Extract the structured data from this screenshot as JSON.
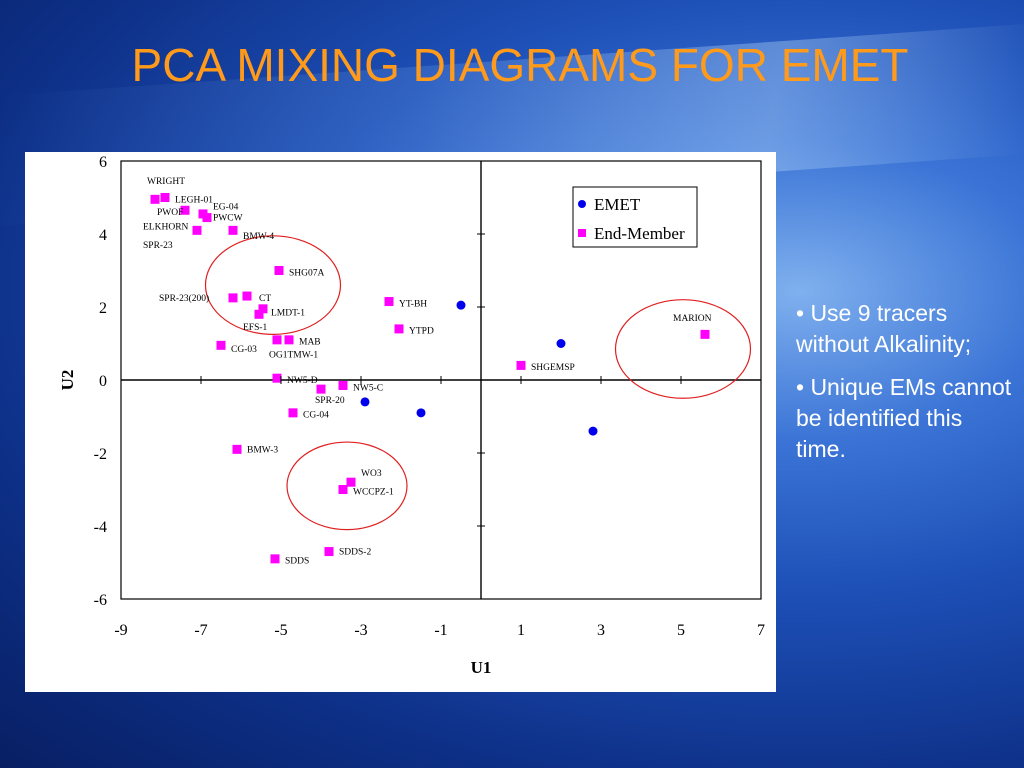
{
  "title": "PCA MIXING DIAGRAMS FOR EMET",
  "bullets": [
    "• Use 9 tracers without Alkalinity;",
    "• Unique EMs cannot be identified this time."
  ],
  "colors": {
    "title": "#ff9a1a",
    "emet": "#0000ee",
    "end_member": "#ff00ff",
    "circle": "#e02020"
  },
  "chart_data": {
    "type": "scatter",
    "title": "",
    "xlabel": "U1",
    "ylabel": "U2",
    "xlim": [
      -9,
      7
    ],
    "ylim": [
      -6,
      6
    ],
    "xticks": [
      "-9",
      "-7",
      "-5",
      "-3",
      "-1",
      "1",
      "3",
      "5",
      "7"
    ],
    "yticks": [
      "6",
      "4",
      "2",
      "0",
      "-2",
      "-4",
      "-6"
    ],
    "legend_position": "top-right",
    "series": [
      {
        "name": "EMET",
        "marker": "circle",
        "points": [
          {
            "x": -0.5,
            "y": 2.05
          },
          {
            "x": 2.0,
            "y": 1.0
          },
          {
            "x": -2.9,
            "y": -0.6
          },
          {
            "x": -1.5,
            "y": -0.9
          },
          {
            "x": 2.8,
            "y": -1.4
          }
        ]
      },
      {
        "name": "End-Member",
        "marker": "square",
        "points": [
          {
            "x": -8.15,
            "y": 4.95,
            "label": "WRIGHT"
          },
          {
            "x": -7.9,
            "y": 5.0,
            "label": "LEGH-01"
          },
          {
            "x": -7.4,
            "y": 4.65,
            "label": "PWOF"
          },
          {
            "x": -6.95,
            "y": 4.55,
            "label": "EG-04"
          },
          {
            "x": -6.85,
            "y": 4.45,
            "label": "PWCW"
          },
          {
            "x": -7.1,
            "y": 4.1,
            "label": "ELKHORN"
          },
          {
            "x": -6.2,
            "y": 4.1,
            "label": "BMW-4"
          },
          {
            "x": -5.05,
            "y": 3.0,
            "label": "SHG07A"
          },
          {
            "x": -6.2,
            "y": 2.25,
            "label": "SPR-23(200)"
          },
          {
            "x": -5.85,
            "y": 2.3,
            "label": "CT"
          },
          {
            "x": -5.45,
            "y": 1.95,
            "label": "LMDT-1"
          },
          {
            "x": -5.55,
            "y": 1.8,
            "label": "EFS-1"
          },
          {
            "x": -5.1,
            "y": 1.1,
            "label": "OG1TMW-1"
          },
          {
            "x": -4.8,
            "y": 1.1,
            "label": "MAB"
          },
          {
            "x": -6.5,
            "y": 0.95,
            "label": "CG-03"
          },
          {
            "x": -5.1,
            "y": 0.05,
            "label": "NW5-D"
          },
          {
            "x": -3.45,
            "y": -0.15,
            "label": "NW5-C"
          },
          {
            "x": -4.0,
            "y": -0.25,
            "label": "SPR-20"
          },
          {
            "x": -4.7,
            "y": -0.9,
            "label": "CG-04"
          },
          {
            "x": -6.1,
            "y": -1.9,
            "label": "BMW-3"
          },
          {
            "x": -3.25,
            "y": -2.8,
            "label": "WO3"
          },
          {
            "x": -3.45,
            "y": -3.0,
            "label": "WCCPZ-1"
          },
          {
            "x": -3.8,
            "y": -4.7,
            "label": "SDDS-2"
          },
          {
            "x": -5.15,
            "y": -4.9,
            "label": "SDDS"
          },
          {
            "x": -2.3,
            "y": 2.15,
            "label": "YT-BH"
          },
          {
            "x": -2.05,
            "y": 1.4,
            "label": "YTPD"
          },
          {
            "x": 1.0,
            "y": 0.4,
            "label": "SHGEMSP"
          },
          {
            "x": 5.6,
            "y": 1.25,
            "label": "MARION"
          }
        ]
      }
    ],
    "text_labels": [
      {
        "text": "WRIGHT",
        "x": -8.35,
        "y": 5.45
      },
      {
        "text": "LEGH-01",
        "x": -7.65,
        "y": 4.95
      },
      {
        "text": "PWOF",
        "x": -8.1,
        "y": 4.6
      },
      {
        "text": "EG-04",
        "x": -6.7,
        "y": 4.75
      },
      {
        "text": "PWCW",
        "x": -6.7,
        "y": 4.45
      },
      {
        "text": "ELKHORN",
        "x": -8.45,
        "y": 4.2
      },
      {
        "text": "BMW-4",
        "x": -5.95,
        "y": 3.95
      },
      {
        "text": "SPR-23",
        "x": -8.45,
        "y": 3.7
      },
      {
        "text": "SHG07A",
        "x": -4.8,
        "y": 2.95
      },
      {
        "text": "SPR-23(200)",
        "x": -8.05,
        "y": 2.25
      },
      {
        "text": "CT",
        "x": -5.55,
        "y": 2.25
      },
      {
        "text": "LMDT-1",
        "x": -5.25,
        "y": 1.85
      },
      {
        "text": "EFS-1",
        "x": -5.95,
        "y": 1.45
      },
      {
        "text": "MAB",
        "x": -4.55,
        "y": 1.05
      },
      {
        "text": "OG1TMW-1",
        "x": -5.3,
        "y": 0.7
      },
      {
        "text": "CG-03",
        "x": -6.25,
        "y": 0.85
      },
      {
        "text": "NW5-D",
        "x": -4.85,
        "y": 0.0
      },
      {
        "text": "NW5-C",
        "x": -3.2,
        "y": -0.2
      },
      {
        "text": "SPR-20",
        "x": -4.15,
        "y": -0.55
      },
      {
        "text": "CG-04",
        "x": -4.45,
        "y": -0.95
      },
      {
        "text": "BMW-3",
        "x": -5.85,
        "y": -1.9
      },
      {
        "text": "WO3",
        "x": -3.0,
        "y": -2.55
      },
      {
        "text": "WCCPZ-1",
        "x": -3.2,
        "y": -3.05
      },
      {
        "text": "SDDS-2",
        "x": -3.55,
        "y": -4.7
      },
      {
        "text": "SDDS",
        "x": -4.9,
        "y": -4.95
      },
      {
        "text": "YT-BH",
        "x": -2.05,
        "y": 2.1
      },
      {
        "text": "YTPD",
        "x": -1.8,
        "y": 1.35
      },
      {
        "text": "SHGEMSP",
        "x": 1.25,
        "y": 0.35
      },
      {
        "text": "MARION",
        "x": 4.8,
        "y": 1.7
      }
    ],
    "circles": [
      {
        "cx": -5.2,
        "cy": 2.6,
        "r": 1.35
      },
      {
        "cx": -3.35,
        "cy": -2.9,
        "r": 1.2
      },
      {
        "cx": 5.05,
        "cy": 0.85,
        "r": 1.35
      }
    ]
  }
}
